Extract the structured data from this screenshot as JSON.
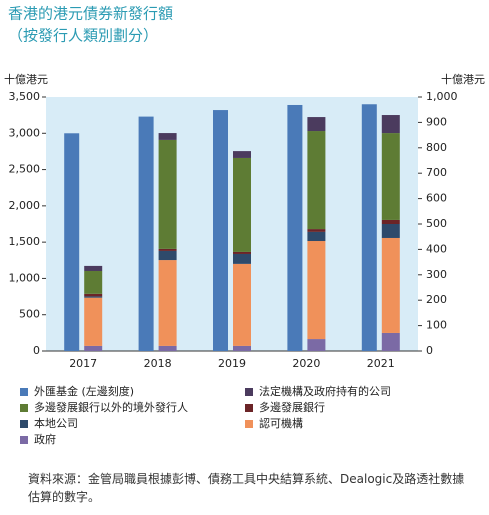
{
  "chart_data": {
    "type": "bar",
    "title": "香港的港元債券新發行額",
    "subtitle": "（按發行人類別劃分）",
    "y_label": "十億港元",
    "y2_label": "十億港元",
    "categories": [
      "2017",
      "2018",
      "2019",
      "2020",
      "2021"
    ],
    "ylim": [
      0,
      3500
    ],
    "yticks": [
      0,
      500,
      {
        "value": 1000,
        "label": "1,000"
      },
      {
        "value": 1500,
        "label": "1,500"
      },
      {
        "value": 2000,
        "label": "2,000"
      },
      {
        "value": 2500,
        "label": "2,500"
      },
      {
        "value": 3000,
        "label": "3,000"
      },
      {
        "value": 3500,
        "label": "3,500"
      }
    ],
    "y2lim": [
      0,
      1000
    ],
    "y2ticks": [
      0,
      100,
      200,
      300,
      400,
      500,
      600,
      700,
      800,
      900,
      {
        "value": 1000,
        "label": "1,000"
      }
    ],
    "series": [
      {
        "name": "外匯基金 (左邊刻度)",
        "color": "#4a7ab8",
        "axis": "y",
        "values": [
          3000,
          3230,
          3320,
          3390,
          3400
        ]
      },
      {
        "name": "法定機構及政府持有的公司",
        "color": "#4b3b5e",
        "axis": "y2",
        "values": [
          20,
          27,
          27,
          55,
          71
        ]
      },
      {
        "name": "多邊發展銀行以外的境外發行人",
        "color": "#5e7c34",
        "axis": "y2",
        "values": [
          90,
          429,
          370,
          386,
          342
        ]
      },
      {
        "name": "多邊發展銀行",
        "color": "#6b2427",
        "axis": "y2",
        "values": [
          10,
          8,
          8,
          11,
          16
        ]
      },
      {
        "name": "本地公司",
        "color": "#2e4a6b",
        "axis": "y2",
        "values": [
          5,
          36,
          39,
          36,
          55
        ]
      },
      {
        "name": "認可機構",
        "color": "#f0915a",
        "axis": "y2",
        "values": [
          190,
          338,
          323,
          386,
          374
        ]
      },
      {
        "name": "政府",
        "color": "#7b6aa5",
        "axis": "y2",
        "values": [
          20,
          20,
          20,
          47,
          71
        ]
      }
    ],
    "source": "資料來源：金管局職員根據彭博、債務工具中央結算系統、Dealogic及路透社數據估算的數字。"
  }
}
